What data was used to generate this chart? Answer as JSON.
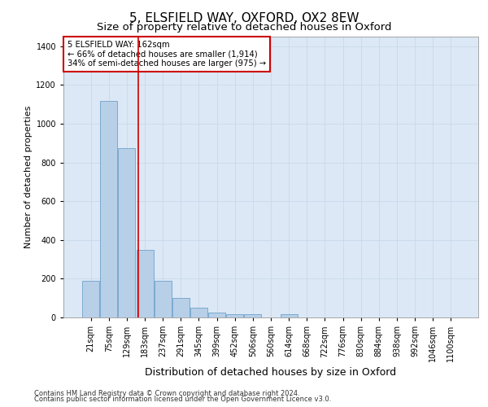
{
  "title": "5, ELSFIELD WAY, OXFORD, OX2 8EW",
  "subtitle": "Size of property relative to detached houses in Oxford",
  "xlabel": "Distribution of detached houses by size in Oxford",
  "ylabel": "Number of detached properties",
  "footer_line1": "Contains HM Land Registry data © Crown copyright and database right 2024.",
  "footer_line2": "Contains public sector information licensed under the Open Government Licence v3.0.",
  "bins": [
    "21sqm",
    "75sqm",
    "129sqm",
    "183sqm",
    "237sqm",
    "291sqm",
    "345sqm",
    "399sqm",
    "452sqm",
    "506sqm",
    "560sqm",
    "614sqm",
    "668sqm",
    "722sqm",
    "776sqm",
    "830sqm",
    "884sqm",
    "938sqm",
    "992sqm",
    "1046sqm",
    "1100sqm"
  ],
  "values": [
    190,
    1120,
    875,
    350,
    190,
    100,
    50,
    25,
    18,
    18,
    0,
    18,
    0,
    0,
    0,
    0,
    0,
    0,
    0,
    0,
    0
  ],
  "bar_color": "#b8cfe8",
  "bar_edgecolor": "#7aaad0",
  "bar_linewidth": 0.7,
  "vline_x": 2.63,
  "vline_color": "#cc0000",
  "vline_linewidth": 1.2,
  "annotation_text": "5 ELSFIELD WAY: 162sqm\n← 66% of detached houses are smaller (1,914)\n34% of semi-detached houses are larger (975) →",
  "annotation_box_color": "#cc0000",
  "annotation_fill": "white",
  "ylim": [
    0,
    1450
  ],
  "yticks": [
    0,
    200,
    400,
    600,
    800,
    1000,
    1200,
    1400
  ],
  "grid_color": "#c8d8eb",
  "background_color": "#dce8f5",
  "title_fontsize": 11,
  "subtitle_fontsize": 9.5,
  "xlabel_fontsize": 9,
  "ylabel_fontsize": 8,
  "tick_fontsize": 7,
  "annotation_fontsize": 7.2,
  "footer_fontsize": 6
}
